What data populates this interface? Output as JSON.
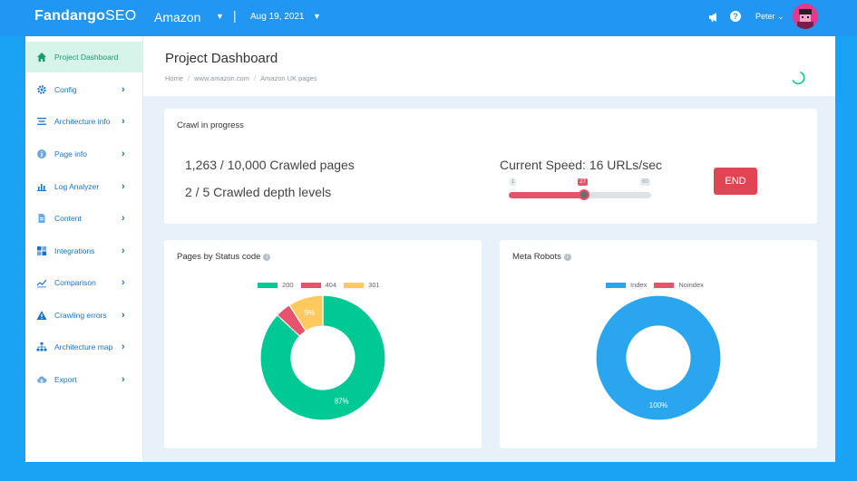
{
  "topbar": {
    "logo_main": "Fandango",
    "logo_suffix": "SEO",
    "project": "Amazon",
    "date": "Aug 19, 2021",
    "user": "Peter",
    "bell_icon": "megaphone-icon",
    "help_icon": "help-icon"
  },
  "sidebar": {
    "items": [
      {
        "label": "Project Dashboard",
        "icon": "home-icon",
        "active": true
      },
      {
        "label": "Config",
        "icon": "gear-icon"
      },
      {
        "label": "Architecture info",
        "icon": "list-icon"
      },
      {
        "label": "Page info",
        "icon": "info-icon"
      },
      {
        "label": "Log Analyzer",
        "icon": "bar-chart-icon"
      },
      {
        "label": "Content",
        "icon": "document-icon"
      },
      {
        "label": "Integrations",
        "icon": "grid-icon"
      },
      {
        "label": "Comparison",
        "icon": "line-chart-icon"
      },
      {
        "label": "Crawling errors",
        "icon": "warning-icon"
      },
      {
        "label": "Architecture map",
        "icon": "sitemap-icon"
      },
      {
        "label": "Export",
        "icon": "cloud-icon"
      }
    ]
  },
  "header": {
    "title": "Project Dashboard",
    "breadcrumb": [
      "Home",
      "www.amazon.com",
      "Amazon UK pages"
    ]
  },
  "crawl": {
    "title": "Crawl in progress",
    "pages_text": "1,263 / 10,000 Crawled pages",
    "depth_text": "2 / 5 Crawled depth levels",
    "speed_text": "Current Speed: 16 URLs/sec",
    "end_label": "END",
    "slider": {
      "min": 1,
      "max": 50,
      "current": 27,
      "min_label": "1",
      "max_label": "50",
      "current_label": "27"
    }
  },
  "colors": {
    "accent": "#2196f3",
    "green": "#00c994",
    "red": "#e5546a",
    "yellow": "#ffc95e",
    "blue": "#2aa6ef"
  },
  "chart_data": [
    {
      "type": "pie",
      "title": "Pages by Status code",
      "categories": [
        "200",
        "404",
        "301"
      ],
      "values": [
        87,
        4,
        9
      ],
      "labels": [
        "87%",
        "",
        "9%"
      ],
      "colors": [
        "#00c994",
        "#e5546a",
        "#ffc95e"
      ],
      "legend": "top"
    },
    {
      "type": "pie",
      "title": "Meta Robots",
      "categories": [
        "Index",
        "Noindex"
      ],
      "values": [
        100,
        0
      ],
      "labels": [
        "100%",
        ""
      ],
      "colors": [
        "#2aa6ef",
        "#e5546a"
      ],
      "legend": "top"
    }
  ]
}
